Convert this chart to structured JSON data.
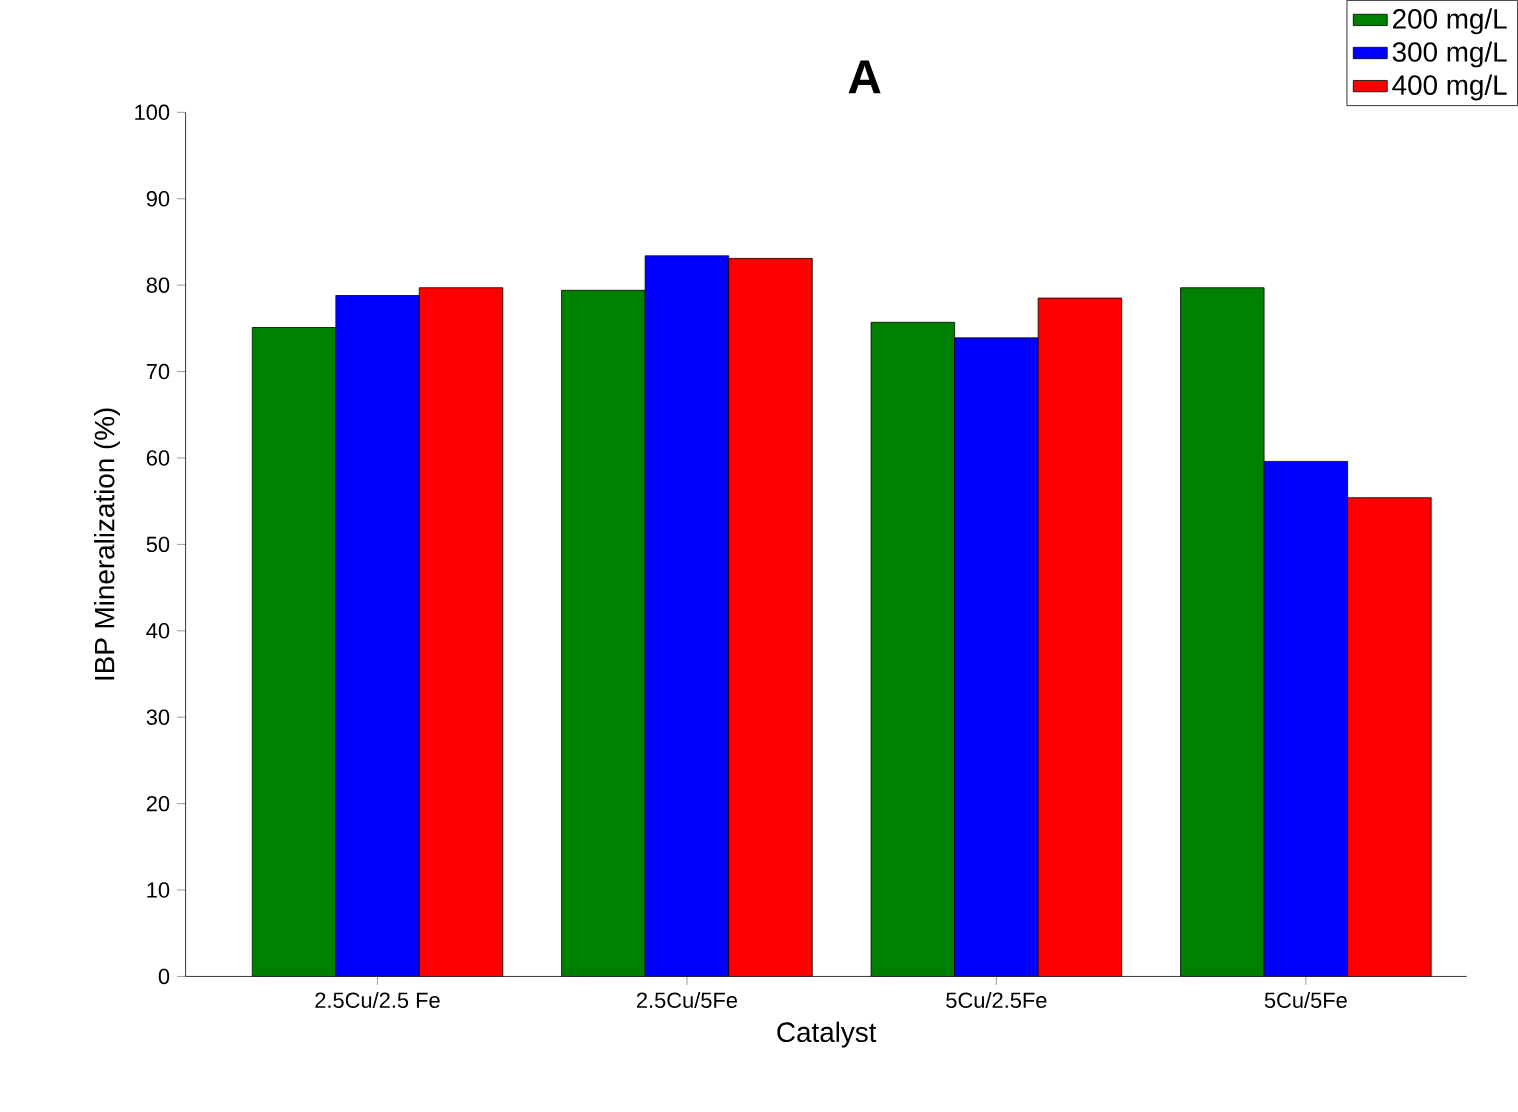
{
  "chart_data": {
    "type": "bar",
    "title": "A",
    "xlabel": "Catalyst",
    "ylabel": "IBP Mineralization (%)",
    "categories": [
      "2.5Cu/2.5 Fe",
      "2.5Cu/5Fe",
      "5Cu/2.5Fe",
      "5Cu/5Fe"
    ],
    "series": [
      {
        "name": "200 mg/L",
        "color": "#008000",
        "values": [
          75.1,
          79.4,
          75.7,
          79.7
        ]
      },
      {
        "name": "300 mg/L",
        "color": "#0000ff",
        "values": [
          78.8,
          83.4,
          73.9,
          59.6
        ]
      },
      {
        "name": "400 mg/L",
        "color": "#ff0000",
        "values": [
          79.7,
          83.1,
          78.5,
          55.4
        ]
      }
    ],
    "ylim": [
      0,
      100
    ],
    "yticks": [
      0,
      10,
      20,
      30,
      40,
      50,
      60,
      70,
      80,
      90,
      100
    ],
    "grid": false,
    "legend": "top right"
  }
}
